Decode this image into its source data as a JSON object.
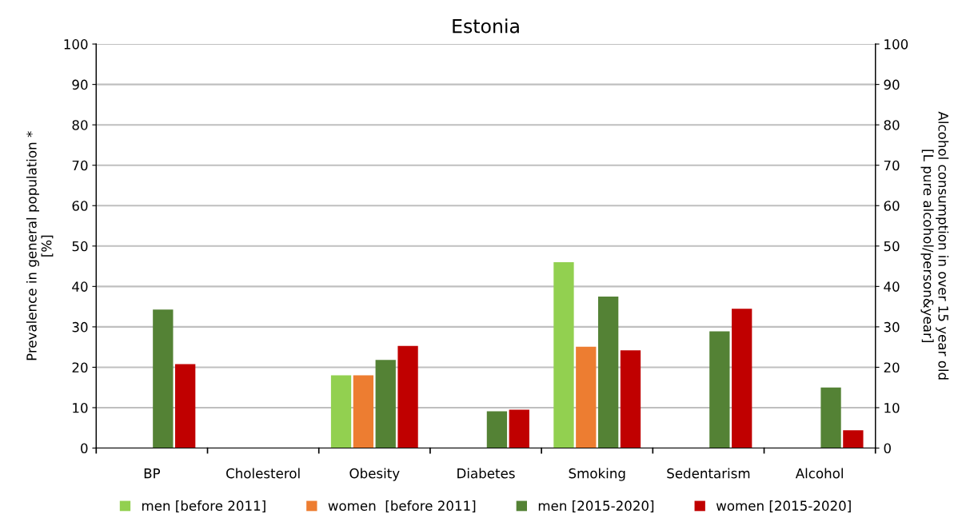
{
  "chart_data": {
    "type": "bar",
    "title": "Estonia",
    "ylabel": "Prevalence in general population *\n[%]",
    "y2label": "Alcohol consumption in over 15 year old\n[L pure alcohol/person&year]",
    "categories": [
      "BP",
      "Cholesterol",
      "Obesity",
      "Diabetes",
      "Smoking",
      "Sedentarism",
      "Alcohol"
    ],
    "series": [
      {
        "name": "men [before 2011]",
        "color": "#92d050",
        "values": [
          null,
          null,
          18,
          null,
          46,
          null,
          null
        ]
      },
      {
        "name": "women  [before 2011]",
        "color": "#ed7d31",
        "values": [
          null,
          null,
          18,
          null,
          25.1,
          null,
          null
        ]
      },
      {
        "name": "men [2015-2020]",
        "color": "#548235",
        "values": [
          34.3,
          null,
          21.8,
          9.1,
          37.5,
          28.9,
          15
        ]
      },
      {
        "name": "women [2015-2020]",
        "color": "#c00000",
        "values": [
          20.8,
          null,
          25.3,
          9.5,
          24.2,
          34.5,
          4.4
        ]
      }
    ],
    "ylim": [
      0,
      100
    ],
    "yticks": [
      0,
      10,
      20,
      30,
      40,
      50,
      60,
      70,
      80,
      90,
      100
    ],
    "y2lim": [
      0,
      100
    ],
    "y2ticks": [
      0,
      10,
      20,
      30,
      40,
      50,
      60,
      70,
      80,
      90,
      100
    ],
    "grid": "y",
    "legend": "bottom"
  }
}
